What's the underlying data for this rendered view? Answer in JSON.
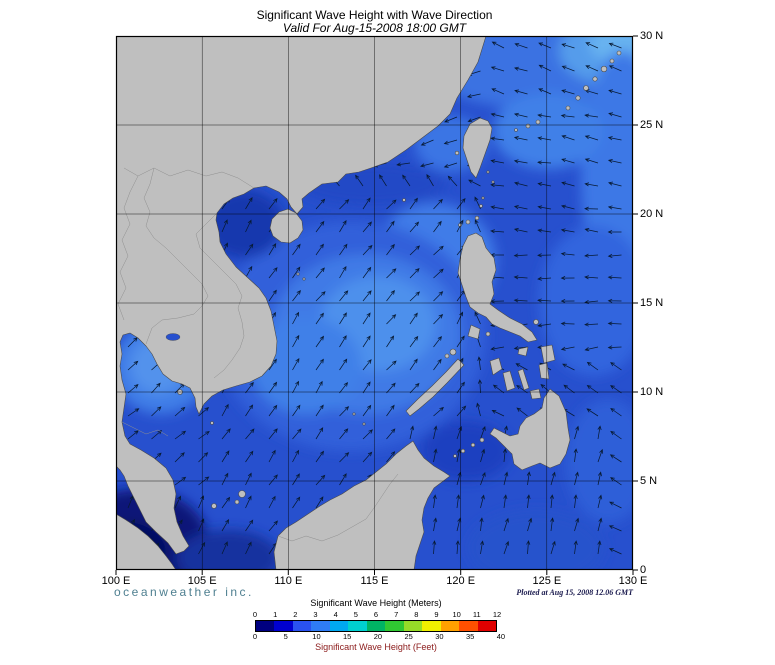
{
  "title": "Significant Wave Height with Wave Direction",
  "subtitle": "Valid For Aug-15-2008 18:00 GMT",
  "branding": "oceanweather inc.",
  "plotted_note": "Plotted at Aug 15, 2008 12.06 GMT",
  "axes": {
    "x_ticks": [
      "100 E",
      "105 E",
      "110 E",
      "115 E",
      "120 E",
      "125 E",
      "130 E"
    ],
    "y_ticks": [
      "0",
      "5 N",
      "10 N",
      "15 N",
      "20 N",
      "25 N",
      "30 N"
    ]
  },
  "legend": {
    "meters_label": "Significant Wave Height (Meters)",
    "meters_ticks": [
      "0",
      "1",
      "2",
      "3",
      "4",
      "5",
      "6",
      "7",
      "8",
      "9",
      "10",
      "11",
      "12"
    ],
    "feet_label": "Significant Wave Height (Feet)",
    "feet_ticks": [
      0,
      5,
      10,
      15,
      20,
      25,
      30,
      35,
      40
    ],
    "colors": [
      "#000080",
      "#0000d0",
      "#2a52f0",
      "#2f7cf6",
      "#00a8f0",
      "#00d0d0",
      "#00b464",
      "#30c832",
      "#96dc28",
      "#f0f000",
      "#ffa000",
      "#ff5000",
      "#e00000"
    ]
  },
  "map_colors": {
    "ocean_base": "#2750ce",
    "land": "#bfbfbf",
    "land_outline": "#4a4a4a",
    "arrow": "#071a33"
  },
  "chart_data": {
    "type": "heatmap",
    "title": "Significant Wave Height with Wave Direction",
    "valid_time": "Aug-15-2008 18:00 GMT",
    "x_range_deg_east": [
      100,
      130
    ],
    "y_range_deg_north": [
      0,
      30
    ],
    "colorbar_meters": [
      0,
      1,
      2,
      3,
      4,
      5,
      6,
      7,
      8,
      9,
      10,
      11,
      12
    ],
    "colorbar_feet": [
      0,
      5,
      10,
      15,
      20,
      25,
      30,
      35,
      40
    ],
    "units": [
      "Meters",
      "Feet"
    ],
    "legend_position": "bottom"
  }
}
